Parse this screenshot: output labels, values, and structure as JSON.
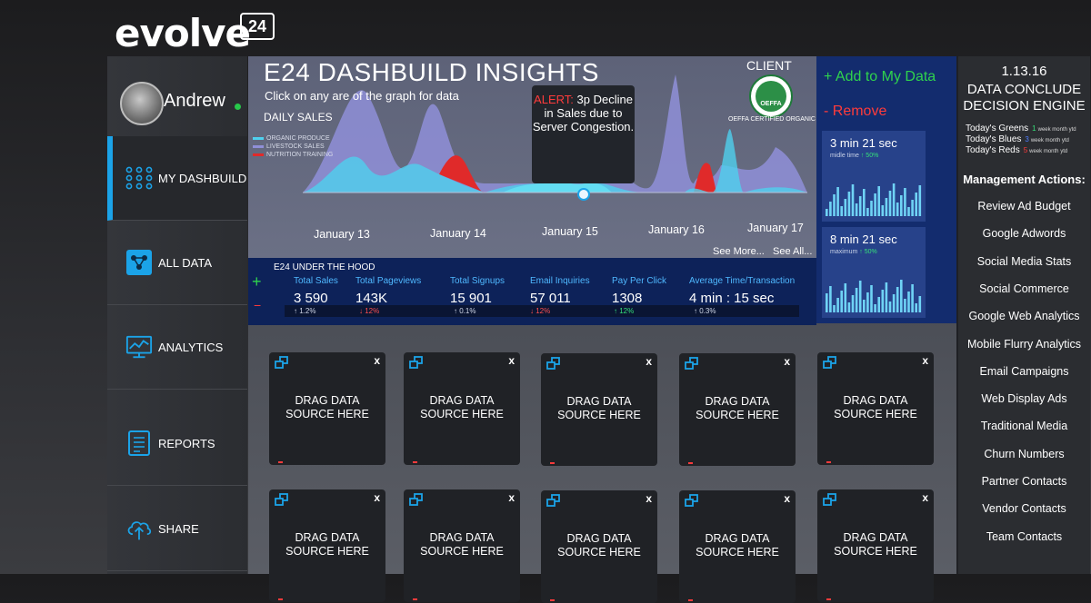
{
  "logo": {
    "text": "evolve",
    "badge": "24"
  },
  "user": {
    "name": "Andrew"
  },
  "nav": [
    {
      "label": "MY DASHBUILD",
      "icon": "grid-dots-icon"
    },
    {
      "label": "ALL DATA",
      "icon": "data-network-icon"
    },
    {
      "label": "ANALYTICS",
      "icon": "analytics-monitor-icon"
    },
    {
      "label": "REPORTS",
      "icon": "report-document-icon"
    },
    {
      "label": "SHARE",
      "icon": "cloud-upload-icon"
    }
  ],
  "hero": {
    "title": "E24 DASHBUILD INSIGHTS",
    "subtitle": "Click on any are of the graph for data",
    "chart_label": "DAILY SALES",
    "legend": [
      "ORGANIC PRODUCE",
      "LIVESTOCK SALES",
      "NUTRITION TRAINING"
    ],
    "client_label": "CLIENT",
    "client_logo_text": "OEFFA",
    "client_caption": "OEFFA CERTIFIED ORGANIC",
    "alert_label": "ALERT:",
    "alert_text": "3p Decline in Sales due to Server Congestion.",
    "see_more": "See More...",
    "see_all": "See All..."
  },
  "chart_data": {
    "type": "area",
    "title": "DAILY SALES",
    "categories": [
      "January 13",
      "January 14",
      "January 15",
      "January 16",
      "January 17"
    ],
    "series": [
      {
        "name": "ORGANIC PRODUCE",
        "color": "#4fd0ee"
      },
      {
        "name": "LIVESTOCK SALES",
        "color": "#8f8fd8"
      },
      {
        "name": "NUTRITION TRAINING",
        "color": "#e02a2a"
      }
    ]
  },
  "actions": {
    "add": "+ Add to My Data",
    "remove": "- Remove"
  },
  "metrics": [
    {
      "value": "3 min 21 sec",
      "label": "midle time",
      "change": "↑ 50%"
    },
    {
      "value": "8 min 21 sec",
      "label": "maximum",
      "change": "↑ 50%"
    }
  ],
  "hood": {
    "title": "E24 UNDER THE HOOD",
    "plus": "+",
    "minus": "−",
    "kpis": [
      {
        "label": "Total Sales",
        "value": "3 590",
        "change": "↑ 1.2%",
        "dir": "up"
      },
      {
        "label": "Total Pageviews",
        "value": "143K",
        "change": "↓ 12%",
        "dir": "down"
      },
      {
        "label": "Total Signups",
        "value": "15 901",
        "change": "↑ 0.1%",
        "dir": "up"
      },
      {
        "label": "Email Inquiries",
        "value": "57 011",
        "change": "↓ 12%",
        "dir": "down"
      },
      {
        "label": "Pay Per Click",
        "value": "1308",
        "change": "↑ 12%",
        "dir": "upg"
      },
      {
        "label": "Average Time/Transaction",
        "value": "4 min : 15 sec",
        "change": "↑ 0.3%",
        "dir": "up"
      }
    ]
  },
  "tiles": {
    "label_line1": "DRAG DATA",
    "label_line2": "SOURCE HERE",
    "close": "x"
  },
  "engine": {
    "version": "1.13.16",
    "title_line1": "DATA CONCLUDE",
    "title_line2": "DECISION ENGINE",
    "today": [
      {
        "label": "Today's Greens",
        "num": "1",
        "color": "#36e07a",
        "period": "week month ytd"
      },
      {
        "label": "Today's Blues",
        "num": "3",
        "color": "#4f7dff",
        "period": "week month ytd"
      },
      {
        "label": "Today's Reds",
        "num": "5",
        "color": "#ff3b3b",
        "period": "week month ytd"
      }
    ],
    "management_title": "Management Actions:",
    "management": [
      "Review Ad Budget",
      "Google Adwords",
      "Social Media Stats",
      "Social Commerce",
      "Google Web Analytics",
      "Mobile Flurry Analytics",
      "Email Campaigns",
      "Web Display Ads",
      "Traditional Media",
      "Churn Numbers",
      "Partner Contacts",
      "Vendor Contacts",
      "Team Contacts"
    ]
  }
}
